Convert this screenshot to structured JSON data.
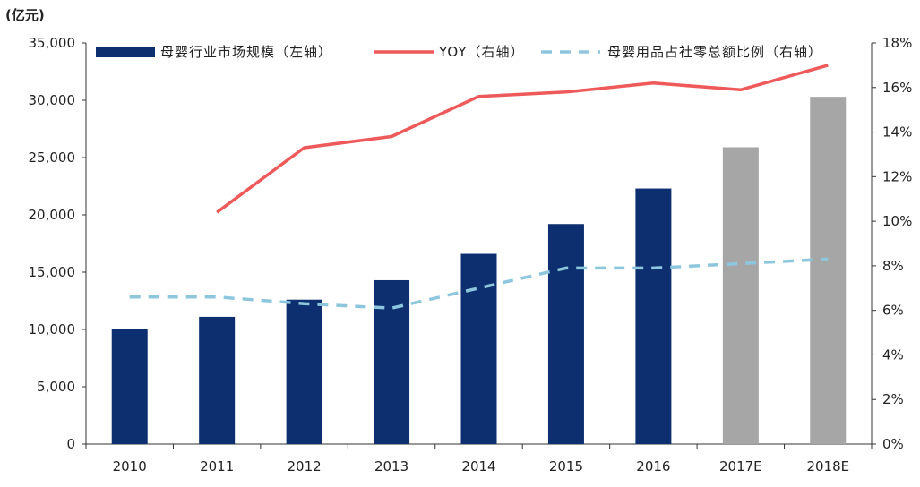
{
  "chart_data": {
    "type": "bar",
    "unit_label": "(亿元)",
    "categories": [
      "2010",
      "2011",
      "2012",
      "2013",
      "2014",
      "2015",
      "2016",
      "2017E",
      "2018E"
    ],
    "y_left": {
      "range": [
        0,
        35000
      ],
      "ticks": [
        0,
        5000,
        10000,
        15000,
        20000,
        25000,
        30000,
        35000
      ],
      "tick_labels": [
        "0",
        "5,000",
        "10,000",
        "15,000",
        "20,000",
        "25,000",
        "30,000",
        "35,000"
      ]
    },
    "y_right": {
      "range": [
        0,
        18
      ],
      "ticks": [
        0,
        2,
        4,
        6,
        8,
        10,
        12,
        14,
        16,
        18
      ],
      "tick_labels": [
        "0%",
        "2%",
        "4%",
        "6%",
        "8%",
        "10%",
        "12%",
        "14%",
        "16%",
        "18%"
      ]
    },
    "series": [
      {
        "name": "母婴行业市场规模（左轴）",
        "type": "bar",
        "axis": "left",
        "values": [
          10000,
          11100,
          12600,
          14300,
          16600,
          19200,
          22300,
          25900,
          30300
        ],
        "colors": [
          "#0d2f6f",
          "#0d2f6f",
          "#0d2f6f",
          "#0d2f6f",
          "#0d2f6f",
          "#0d2f6f",
          "#0d2f6f",
          "#a6a6a6",
          "#a6a6a6"
        ]
      },
      {
        "name": "YOY（右轴）",
        "type": "line",
        "axis": "right",
        "color": "#ee5a5a",
        "style": "solid",
        "values": [
          null,
          10.4,
          13.3,
          13.8,
          15.6,
          15.8,
          16.2,
          15.9,
          17.0
        ]
      },
      {
        "name": "母婴用品占社零总额比例（右轴）",
        "type": "line",
        "axis": "right",
        "color": "#8ec7dd",
        "style": "dashed",
        "values": [
          6.6,
          6.6,
          6.3,
          6.1,
          7.0,
          7.9,
          7.9,
          8.1,
          8.3
        ]
      }
    ]
  }
}
